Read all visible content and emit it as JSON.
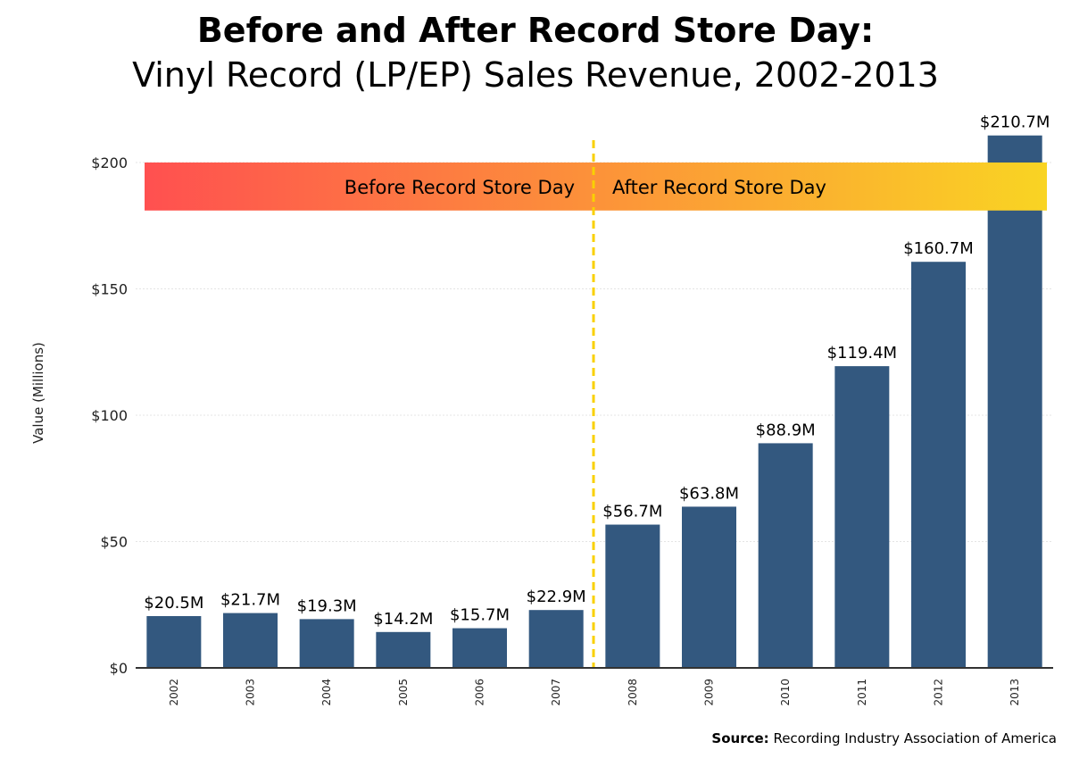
{
  "chart_data": {
    "type": "bar",
    "title": "Before and After Record Store Day:",
    "subtitle": "Vinyl Record (LP/EP) Sales Revenue, 2002-2013",
    "xlabel": "",
    "ylabel": "Value (Millions)",
    "ylim": [
      0,
      215
    ],
    "yticks": [
      0,
      50,
      100,
      150,
      200
    ],
    "ytick_labels": [
      "$0",
      "$50",
      "$100",
      "$150",
      "$200"
    ],
    "grid": true,
    "categories": [
      "2002",
      "2003",
      "2004",
      "2005",
      "2006",
      "2007",
      "2008",
      "2009",
      "2010",
      "2011",
      "2012",
      "2013"
    ],
    "values": [
      20.5,
      21.7,
      19.3,
      14.2,
      15.7,
      22.9,
      56.7,
      63.8,
      88.9,
      119.4,
      160.7,
      210.7
    ],
    "data_labels": [
      "$20.5M",
      "$21.7M",
      "$19.3M",
      "$14.2M",
      "$15.7M",
      "$22.9M",
      "$56.7M",
      "$63.8M",
      "$88.9M",
      "$119.4M",
      "$160.7M",
      "$210.7M"
    ],
    "bar_color": "#33587f",
    "annotations": {
      "divider_between": [
        "2007",
        "2008"
      ],
      "divider_color": "#f9d000",
      "band_y_range": [
        181,
        200
      ],
      "band_colors": [
        "#ff5050",
        "#f9d423"
      ],
      "before_label": "Before Record Store Day",
      "after_label": "After Record Store Day"
    },
    "source_label": "Source:",
    "source_text": "Recording Industry Association of America"
  }
}
